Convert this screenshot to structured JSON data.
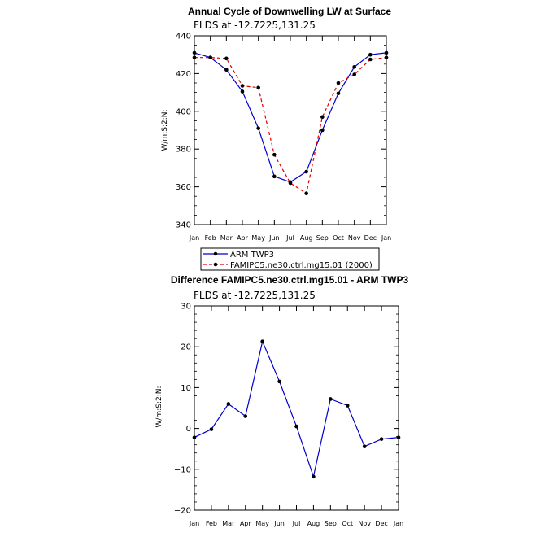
{
  "colors": {
    "obs": "#0000cc",
    "model": "#dd0000",
    "marker": "#000000"
  },
  "chart_data": [
    {
      "type": "line",
      "title": "Annual Cycle of Downwelling LW at Surface",
      "subtitle": "FLDS at -12.7225,131.25",
      "ylabel": "W/m:S:2:N:",
      "xlabel": "",
      "ylim": [
        340,
        440
      ],
      "yticks": [
        340,
        360,
        380,
        400,
        420,
        440
      ],
      "categories": [
        "Jan",
        "Feb",
        "Mar",
        "Apr",
        "May",
        "Jun",
        "Jul",
        "Aug",
        "Sep",
        "Oct",
        "Nov",
        "Dec",
        "Jan"
      ],
      "legend_position": "below",
      "series": [
        {
          "name": "ARM TWP3",
          "style": "solid",
          "values": [
            431,
            428.5,
            422,
            410.5,
            391,
            365.5,
            362.5,
            368,
            390,
            409.5,
            423.5,
            430,
            431
          ]
        },
        {
          "name": "FAMIPC5.ne30.ctrl.mg15.01 (2000)",
          "style": "dashed",
          "values": [
            428.5,
            428.5,
            428,
            413.5,
            412.5,
            377,
            362,
            356.5,
            397,
            415,
            419.5,
            427.5,
            428.5
          ]
        }
      ]
    },
    {
      "type": "line",
      "title": "Difference FAMIPC5.ne30.ctrl.mg15.01 - ARM TWP3",
      "subtitle": "FLDS at -12.7225,131.25",
      "ylabel": "W/m:S:2:N:",
      "xlabel": "",
      "ylim": [
        -20,
        30
      ],
      "yticks": [
        -20,
        -10,
        0,
        10,
        20,
        30
      ],
      "categories": [
        "Jan",
        "Feb",
        "Mar",
        "Apr",
        "May",
        "Jun",
        "Jul",
        "Aug",
        "Sep",
        "Oct",
        "Nov",
        "Dec",
        "Jan"
      ],
      "series": [
        {
          "name": "",
          "style": "solid",
          "values": [
            -2.2,
            -0.2,
            6,
            3,
            21.3,
            11.5,
            0.5,
            -11.8,
            7.2,
            5.6,
            -4.4,
            -2.6,
            -2.2
          ]
        }
      ]
    }
  ]
}
